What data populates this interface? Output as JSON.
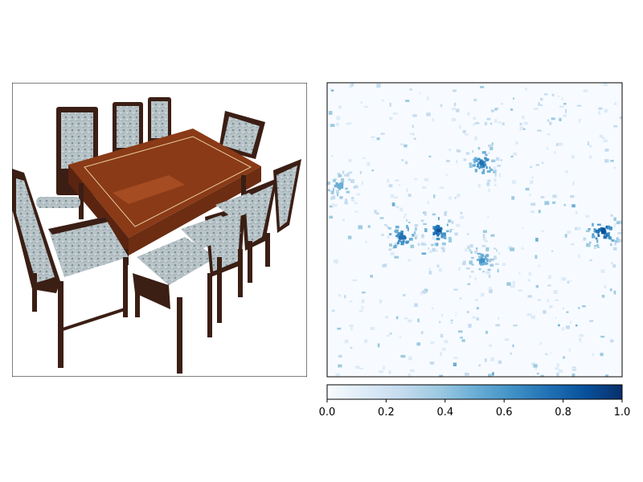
{
  "chart_data": [
    {
      "type": "image",
      "panel": "left",
      "content": "photo of a dining table with eight upholstered chairs",
      "colors": {
        "table_wood": "#8a3a16",
        "table_highlight": "#b0542a",
        "chair_frame": "#3b1e14",
        "upholstery": "#b8c4c8",
        "upholstery_pattern": "#7f9096"
      },
      "frame": true,
      "ticks": false
    },
    {
      "type": "heatmap",
      "panel": "right",
      "cmap": "Blues",
      "vmin": 0.0,
      "vmax": 1.0,
      "colorbar": {
        "orientation": "horizontal",
        "placement": "bottom",
        "ticks": [
          0.0,
          0.2,
          0.4,
          0.6,
          0.8,
          1.0
        ],
        "tick_labels": [
          "0.0",
          "0.2",
          "0.4",
          "0.6",
          "0.8",
          "1.0"
        ]
      },
      "hotspots": [
        {
          "name": "left-cluster",
          "x": 0.25,
          "y": 0.52,
          "value": 0.8
        },
        {
          "name": "center-cluster",
          "x": 0.37,
          "y": 0.5,
          "value": 0.85
        },
        {
          "name": "upper-center",
          "x": 0.52,
          "y": 0.27,
          "value": 0.75
        },
        {
          "name": "lower-center",
          "x": 0.52,
          "y": 0.6,
          "value": 0.6
        },
        {
          "name": "right-cluster",
          "x": 0.93,
          "y": 0.5,
          "value": 0.9
        },
        {
          "name": "left-edge",
          "x": 0.04,
          "y": 0.35,
          "value": 0.55
        }
      ]
    }
  ]
}
